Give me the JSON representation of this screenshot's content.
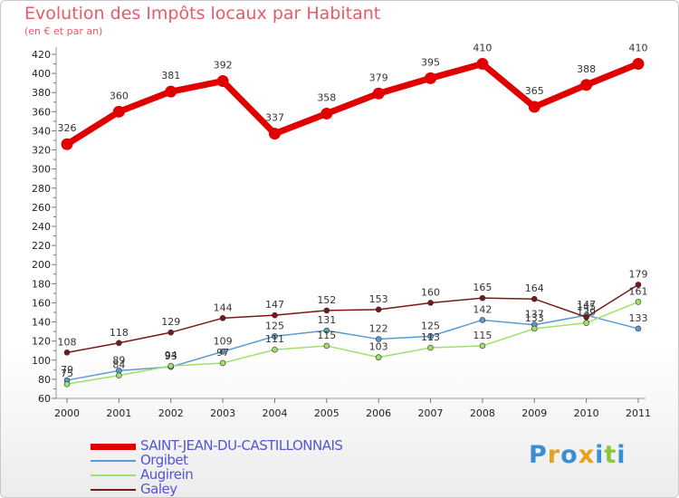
{
  "header": {
    "title": "Evolution des Impôts locaux par Habitant",
    "subtitle": "(en € et par an)"
  },
  "logo": {
    "text": "Proxiti",
    "letters": [
      "P",
      "r",
      "o",
      "x",
      "i",
      "t",
      "i"
    ],
    "colors": [
      "#3a8fd0",
      "#e8a020",
      "#3a8fd0",
      "#e8a020",
      "#3a8fd0",
      "#8cc63f",
      "#3a8fd0"
    ]
  },
  "chart_data": {
    "type": "line",
    "title": "Evolution des Impôts locaux par Habitant",
    "subtitle": "(en € et par an)",
    "xlabel": "",
    "ylabel": "",
    "x": [
      "2000",
      "2001",
      "2002",
      "2003",
      "2004",
      "2005",
      "2006",
      "2007",
      "2008",
      "2009",
      "2010",
      "2011"
    ],
    "ylim": [
      60,
      420
    ],
    "yticks": [
      60,
      80,
      100,
      120,
      140,
      160,
      180,
      200,
      220,
      240,
      260,
      280,
      300,
      320,
      340,
      360,
      380,
      400,
      420
    ],
    "grid": false,
    "legend_position": "bottom-left",
    "series": [
      {
        "name": "SAINT-JEAN-DU-CASTILLONNAIS",
        "color": "#e00000",
        "width": 7,
        "marker": 6.5,
        "values": [
          326,
          360,
          381,
          392,
          337,
          358,
          379,
          395,
          410,
          365,
          388,
          410
        ]
      },
      {
        "name": "Orgibet",
        "color": "#5b9bd0",
        "width": 1.5,
        "marker": 3,
        "values": [
          79,
          89,
          93,
          109,
          125,
          131,
          122,
          125,
          142,
          137,
          147,
          133
        ]
      },
      {
        "name": "Augirein",
        "color": "#9ee06a",
        "width": 1.5,
        "marker": 3,
        "values": [
          75,
          84,
          94,
          97,
          111,
          115,
          103,
          113,
          115,
          133,
          139,
          161
        ]
      },
      {
        "name": "Galey",
        "color": "#7a1818",
        "width": 1.5,
        "marker": 3,
        "values": [
          108,
          118,
          129,
          144,
          147,
          152,
          153,
          160,
          165,
          164,
          145,
          179
        ]
      }
    ]
  }
}
